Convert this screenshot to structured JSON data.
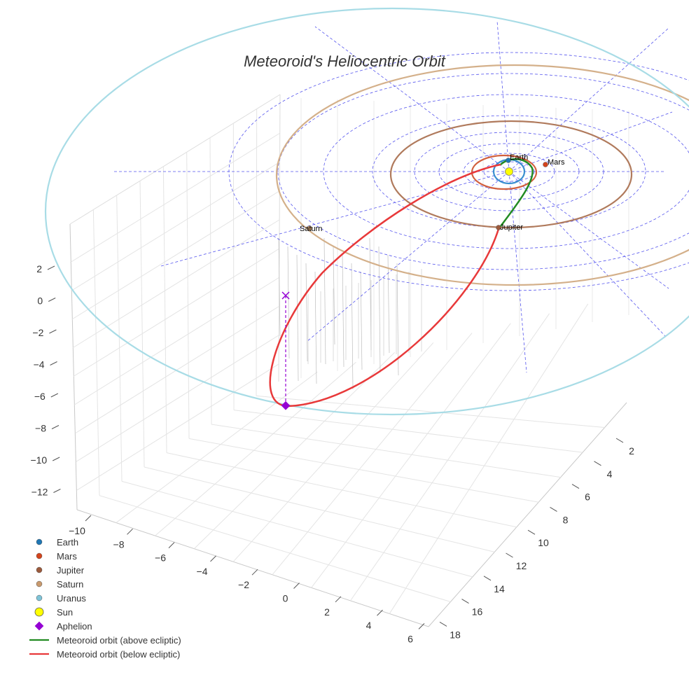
{
  "chart_data": {
    "type": "3d-line",
    "title": "Meteoroid's Heliocentric Orbit",
    "z_ticks": [
      "2",
      "0",
      "−2",
      "−4",
      "−6",
      "−8",
      "−10",
      "−12"
    ],
    "x_ticks": [
      "−10",
      "−8",
      "−6",
      "−4",
      "−2",
      "0",
      "2",
      "4",
      "6"
    ],
    "y_ticks": [
      "2",
      "4",
      "6",
      "8",
      "10",
      "12",
      "14",
      "16",
      "18"
    ],
    "planets": [
      {
        "name": "Earth",
        "color": "#1f77b4"
      },
      {
        "name": "Mars",
        "color": "#d4441c"
      },
      {
        "name": "Jupiter",
        "color": "#9c5a3c"
      },
      {
        "name": "Saturn",
        "color": "#c99a6e"
      },
      {
        "name": "Uranus",
        "color": "#7fc4d8"
      }
    ],
    "orbits": [
      {
        "name": "Earth",
        "color": "#3b8fd0"
      },
      {
        "name": "Mars",
        "color": "#d2603e"
      },
      {
        "name": "Jupiter",
        "color": "#b07a5c"
      },
      {
        "name": "Saturn",
        "color": "#d4b08a"
      },
      {
        "name": "Uranus",
        "color": "#a8dce6"
      }
    ],
    "sun": {
      "label": "Sun",
      "color": "#ffff00"
    },
    "aphelion": {
      "label": "Aphelion",
      "color": "#9400d3"
    },
    "series": [
      {
        "name": "Meteoroid orbit (above ecliptic)",
        "color": "#228b22"
      },
      {
        "name": "Meteoroid orbit (below ecliptic)",
        "color": "#e8393a"
      }
    ],
    "legend": {
      "position": "bottom-left",
      "entries": [
        "Earth",
        "Mars",
        "Jupiter",
        "Saturn",
        "Uranus",
        "Sun",
        "Aphelion",
        "Meteoroid orbit (above ecliptic)",
        "Meteoroid orbit (below ecliptic)"
      ]
    },
    "grid": true,
    "polar_grid_color": "#5555ee"
  }
}
